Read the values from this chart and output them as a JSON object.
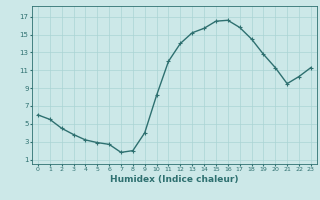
{
  "x": [
    0,
    1,
    2,
    3,
    4,
    5,
    6,
    7,
    8,
    9,
    10,
    11,
    12,
    13,
    14,
    15,
    16,
    17,
    18,
    19,
    20,
    21,
    22,
    23
  ],
  "y": [
    6.0,
    5.5,
    4.5,
    3.8,
    3.2,
    2.9,
    2.7,
    1.8,
    2.0,
    4.0,
    8.2,
    12.0,
    14.0,
    15.2,
    15.7,
    16.5,
    16.6,
    15.8,
    14.5,
    12.8,
    11.3,
    9.5,
    10.3,
    11.3
  ],
  "line_color": "#2e7070",
  "marker": "+",
  "marker_size": 3,
  "linewidth": 1.0,
  "bg_color": "#cce8e8",
  "grid_color": "#aad4d4",
  "tick_color": "#2e7070",
  "xlabel": "Humidex (Indice chaleur)",
  "xlabel_fontsize": 6.5,
  "xlabel_color": "#2e7070",
  "ylabel_ticks": [
    1,
    3,
    5,
    7,
    9,
    11,
    13,
    15,
    17
  ],
  "xtick_labels": [
    "0",
    "1",
    "2",
    "3",
    "4",
    "5",
    "6",
    "7",
    "8",
    "9",
    "10",
    "11",
    "12",
    "13",
    "14",
    "15",
    "16",
    "17",
    "18",
    "19",
    "20",
    "21",
    "22",
    "23"
  ],
  "ylim": [
    0.5,
    18.2
  ],
  "xlim": [
    -0.5,
    23.5
  ]
}
